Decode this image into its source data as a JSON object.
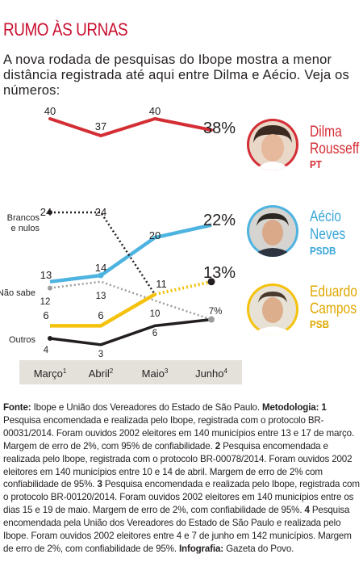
{
  "header": {
    "title": "RUMO ÀS URNAS",
    "subtitle": "A nova rodada de pesquisas do Ibope mostra a menor distância registrada até aqui entre Dilma e Aécio. Veja os números:"
  },
  "colors": {
    "dilma": "#d42e35",
    "aecio": "#4db3e0",
    "eduardo": "#f4c20d",
    "brancos": "#231f20",
    "nao_sabe": "#9d9d9c",
    "outros": "#231f20",
    "accent": "#c8102e"
  },
  "candidates": [
    {
      "key": "dilma",
      "first": "Dilma",
      "last": "Rousseff",
      "party": "PT",
      "name_color": "#d42e35",
      "party_color": "#d42e35",
      "ring_color": "#d42e35"
    },
    {
      "key": "aecio",
      "first": "Aécio",
      "last": "Neves",
      "party": "PSDB",
      "name_color": "#3aa6d8",
      "party_color": "#3aa6d8",
      "ring_color": "#4db3e0"
    },
    {
      "key": "eduardo",
      "first": "Eduardo",
      "last": "Campos",
      "party": "PSB",
      "name_color": "#e0a800",
      "party_color": "#e0a800",
      "ring_color": "#f4c20d"
    }
  ],
  "chart_data": {
    "type": "line",
    "categories": [
      {
        "label": "Março",
        "sup": "1"
      },
      {
        "label": "Abril",
        "sup": "2"
      },
      {
        "label": "Maio",
        "sup": "3"
      },
      {
        "label": "Junho",
        "sup": "4"
      }
    ],
    "series": [
      {
        "key": "dilma",
        "values": [
          40,
          37,
          40,
          38
        ],
        "labels": [
          "40",
          "37",
          "40",
          "38%"
        ],
        "style": "solid"
      },
      {
        "key": "aecio",
        "values": [
          13,
          14,
          20,
          22
        ],
        "labels": [
          "13",
          "14",
          "20",
          "22%"
        ],
        "style": "solid"
      },
      {
        "key": "eduardo",
        "values": [
          6,
          6,
          11,
          13
        ],
        "labels": [
          "6",
          "6",
          "11",
          "13%"
        ],
        "style": "solid-then-dotted"
      },
      {
        "key": "brancos",
        "name": "Brancos e nulos",
        "values": [
          24,
          24,
          11,
          null
        ],
        "labels": [
          "24",
          "24",
          "11",
          ""
        ],
        "style": "dotted"
      },
      {
        "key": "nao_sabe",
        "name": "Não sabe",
        "values": [
          12,
          13,
          10,
          7
        ],
        "labels": [
          "12",
          "13",
          "10",
          "7%"
        ],
        "style": "dotted"
      },
      {
        "key": "outros",
        "name": "Outros",
        "values": [
          4,
          3,
          6,
          7
        ],
        "labels": [
          "4",
          "3",
          "6",
          ""
        ],
        "style": "solid"
      }
    ],
    "grid": false,
    "legend": "right"
  },
  "footer": {
    "source_label": "Fonte:",
    "source_text": " Ibope e União dos Vereadores do Estado de São Paulo. ",
    "method_label": "Metodologia: 1",
    "method_text_1": " Pesquisa encomendada e realizada pelo Ibope, registrada com o protocolo BR-00031/2014. Foram ouvidos 2002 eleitores em 140 municípios entre 13 e 17 de março. Margem de erro de 2%, com 95% de confiabilidade. ",
    "n2": "2",
    "method_text_2": " Pesquisa encomendada e realizada pelo Ibope, registrada com o protocolo BR-00078/2014. Foram ouvidos 2002 eleitores em 140 municípios entre 10 e 14 de abril. Margem de erro de 2% com confiabilidade de 95%. ",
    "n3": "3",
    "method_text_3": " Pesquisa encomendada e realizada pelo Ibope, registrada com o protocolo BR-00120/2014. Foram ouvidos 2002 eleitores em 140 municípios entre os dias 15 e 19 de maio. Margem de erro de 2%, com confiabilidade de 95%. ",
    "n4": "4",
    "method_text_4": " Pesquisa encomendada pela União dos Vereadores do Estado de São Paulo e realizada pelo Ibope. Foram ouvidos 2002 eleitores entre 4 e 7 de junho em 142 municípios. Margem de erro de 2%, com confiabilidade de 95%. ",
    "credit_label": "Infografia:",
    "credit_text": " Gazeta do Povo."
  }
}
